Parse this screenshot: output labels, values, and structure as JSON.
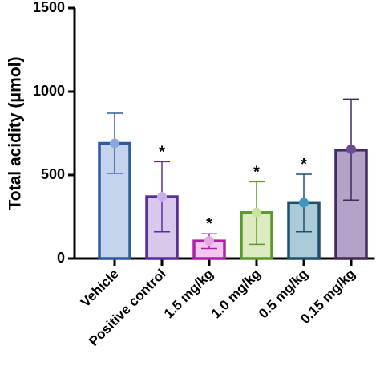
{
  "chart_data": {
    "type": "bar",
    "ylabel": "Total acidity (μmol)",
    "xlabel": "",
    "ylim": [
      0,
      1500
    ],
    "yticks": [
      0,
      500,
      1000,
      1500
    ],
    "yticks_labels": [
      "0",
      "500",
      "1000",
      "1500"
    ],
    "grid": false,
    "legend": "none",
    "categories": [
      "Vehicle",
      "Positive control",
      "1.5 mg/kg",
      "1.0 mg/kg",
      "0.5 mg/kg",
      "0.15 mg/kg"
    ],
    "values": [
      690,
      370,
      105,
      275,
      335,
      650
    ],
    "point_values": [
      690,
      370,
      105,
      275,
      335,
      655
    ],
    "error_upper": [
      870,
      580,
      148,
      460,
      505,
      955
    ],
    "error_lower": [
      510,
      160,
      60,
      85,
      160,
      350
    ],
    "annotations": [
      "",
      "*",
      "*",
      "*",
      "*",
      ""
    ],
    "fill_colors": [
      "#c5d3ec",
      "#d9c8ec",
      "#f2c8ef",
      "#dcecc0",
      "#a9ccd8",
      "#b3a3c8"
    ],
    "edge_colors": [
      "#2e5aa4",
      "#5b2d9c",
      "#b01fa8",
      "#5a9a2a",
      "#1f4f6a",
      "#3d2a5e"
    ],
    "point_colors": [
      "#8da9dc",
      "#c8b0e6",
      "#e7a6e3",
      "#c7e39d",
      "#3e97bd",
      "#6b4a96"
    ]
  }
}
